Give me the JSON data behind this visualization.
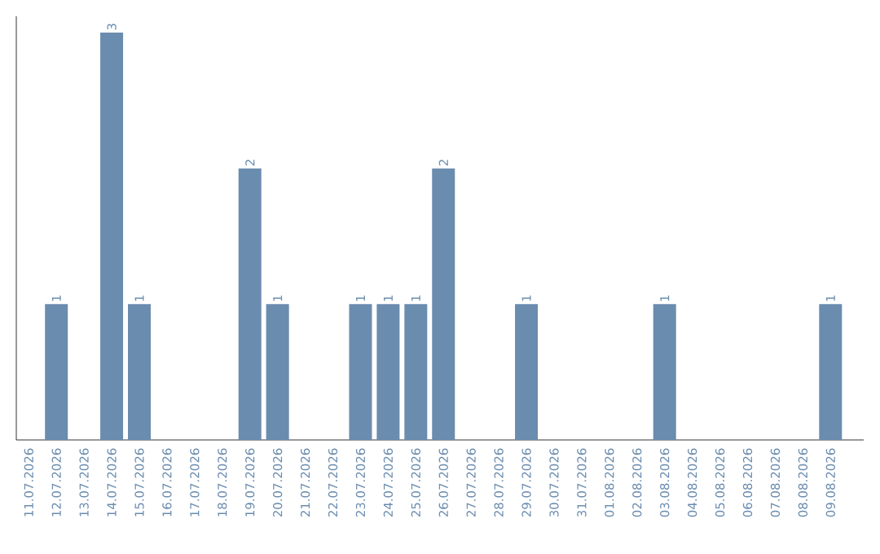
{
  "chart_data": {
    "type": "bar",
    "categories": [
      "11.07.2026",
      "12.07.2026",
      "13.07.2026",
      "14.07.2026",
      "15.07.2026",
      "16.07.2026",
      "17.07.2026",
      "18.07.2026",
      "19.07.2026",
      "20.07.2026",
      "21.07.2026",
      "22.07.2026",
      "23.07.2026",
      "24.07.2026",
      "25.07.2026",
      "26.07.2026",
      "27.07.2026",
      "28.07.2026",
      "29.07.2026",
      "30.07.2026",
      "31.07.2026",
      "01.08.2026",
      "02.08.2026",
      "03.08.2026",
      "04.08.2026",
      "05.08.2026",
      "06.08.2026",
      "07.08.2026",
      "08.08.2026",
      "09.08.2026"
    ],
    "values": [
      0,
      1,
      0,
      3,
      1,
      0,
      0,
      0,
      2,
      1,
      0,
      0,
      1,
      1,
      1,
      2,
      0,
      0,
      1,
      0,
      0,
      0,
      0,
      1,
      0,
      0,
      0,
      0,
      0,
      1
    ],
    "value_labels": [
      null,
      "1",
      null,
      "3",
      "1",
      null,
      null,
      null,
      "2",
      "1",
      null,
      null,
      "1",
      "1",
      "1",
      "2",
      null,
      null,
      "1",
      null,
      null,
      null,
      null,
      "1",
      null,
      null,
      null,
      null,
      null,
      "1"
    ],
    "color": "#6a8caf",
    "grid": false
  }
}
